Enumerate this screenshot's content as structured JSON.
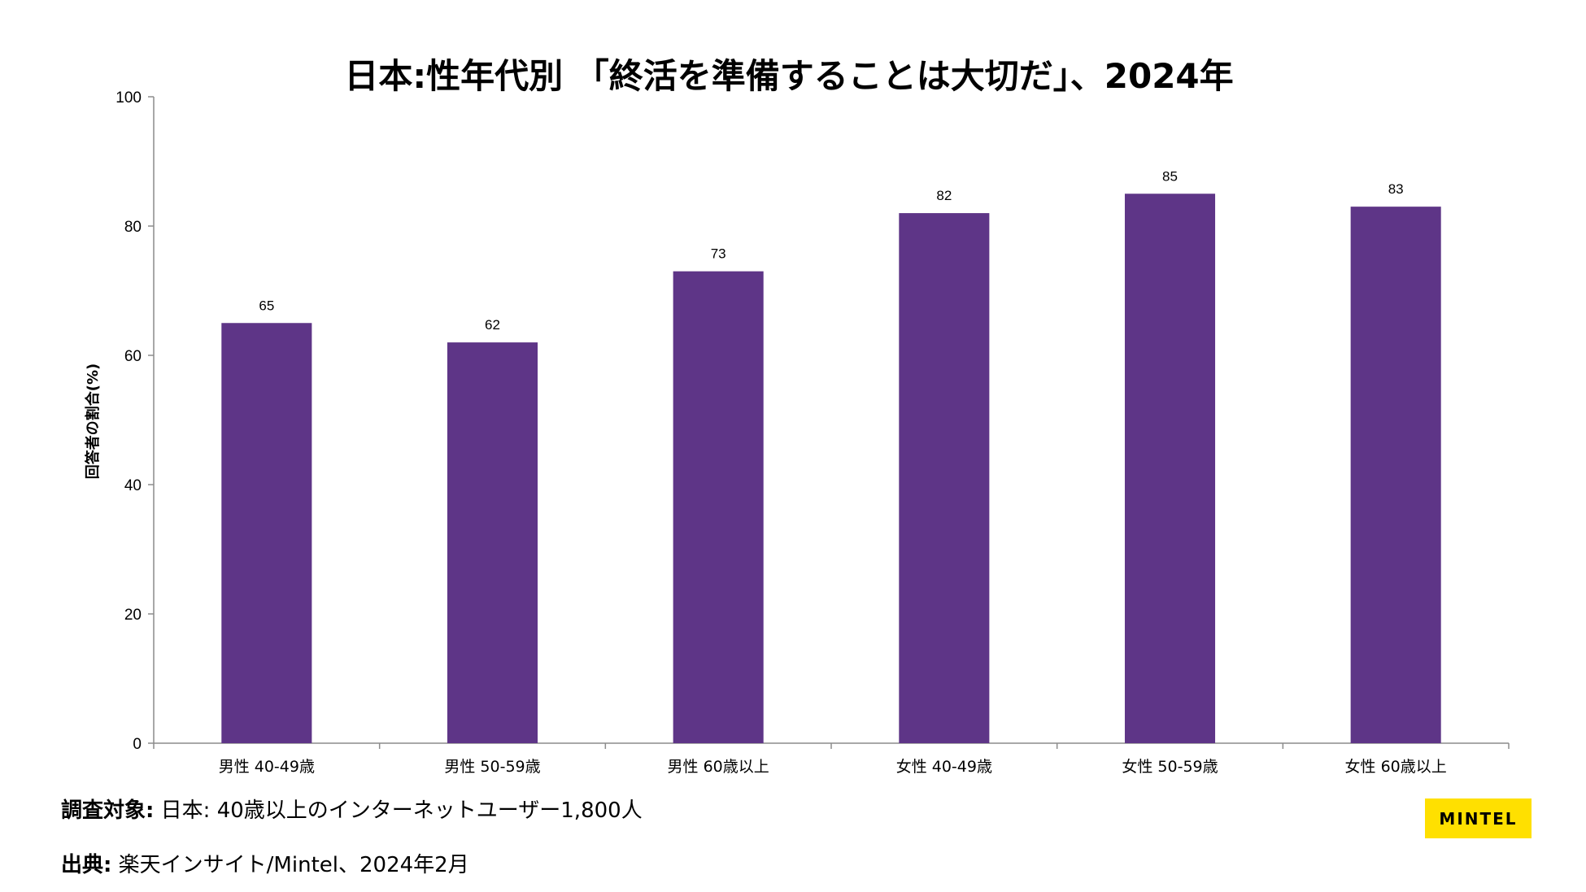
{
  "colors": {
    "bar": "#5e3587",
    "axis": "#8c8c8c",
    "logo_bg": "#ffe000"
  },
  "chart_data": {
    "type": "bar",
    "title": "日本:性年代別 「終活を準備することは大切だ」、2024年",
    "xlabel": "",
    "ylabel": "回答者の割合(%)",
    "ylim": [
      0,
      100
    ],
    "yticks": [
      0,
      20,
      40,
      60,
      80,
      100
    ],
    "grid": false,
    "categories": [
      "男性 40-49歳",
      "男性 50-59歳",
      "男性 60歳以上",
      "女性 40-49歳",
      "女性 50-59歳",
      "女性 60歳以上"
    ],
    "values": [
      65,
      62,
      73,
      82,
      85,
      83
    ]
  },
  "footer": {
    "survey_label": "調査対象:",
    "survey_text": "日本: 40歳以上のインターネットユーザー1,800人",
    "source_label": "出典:",
    "source_text": "楽天インサイト/Mintel、2024年2月"
  },
  "logo": {
    "text": "MINTEL"
  }
}
